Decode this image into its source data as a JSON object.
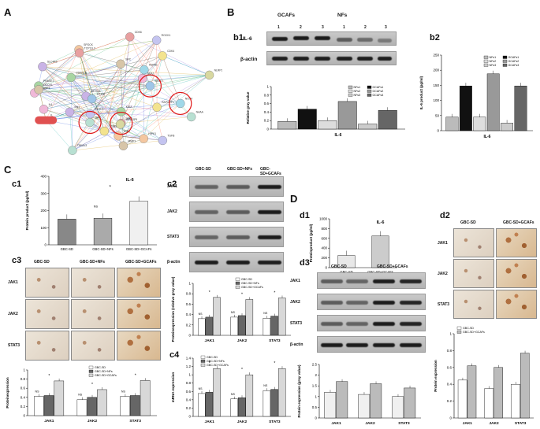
{
  "panels": {
    "A": "A",
    "B": "B",
    "C": "C",
    "D": "D",
    "b1": "b1",
    "b2": "b2",
    "c1": "c1",
    "c2": "c2",
    "c3": "c3",
    "c4": "c4",
    "d1": "d1",
    "d2": "d2",
    "d3": "d3"
  },
  "network": {
    "nodes": [
      "SLC4A3",
      "TOP1",
      "PHASE1",
      "CDK4",
      "IL",
      "CDK6",
      "NAAA",
      "MMP1",
      "TGFB",
      "DNASE1",
      "NOX4",
      "NLRP3",
      "ZBTB45",
      "HIPK1",
      "CDKN1B",
      "STAT2",
      "STAT3",
      "JAK1",
      "JAK2",
      "SRC",
      "PLOD1",
      "SKA2",
      "HSPB1",
      "HERC2P9",
      "KRT",
      "SPOCK",
      "KIAA",
      "RAPGEF1",
      "EP300",
      "TCP11L2",
      "TRIM13",
      "DOCK1",
      "ROCK1",
      "IL6"
    ]
  },
  "b1": {
    "header_left": "GCAFs",
    "header_right": "NFs",
    "lanes": [
      "1",
      "2",
      "3",
      "1",
      "2",
      "3"
    ],
    "rows": [
      "IL-6",
      "β-actin"
    ],
    "chart_data": {
      "type": "bar",
      "ylabel": "Relative gray value",
      "xlabel": "IL-6",
      "ylim": [
        0,
        1
      ],
      "yticks": [
        "0",
        "0.2",
        "0.4",
        "0.6",
        "0.8",
        "1"
      ],
      "series": [
        {
          "name": "NFs1",
          "values": [
            0.18
          ]
        },
        {
          "name": "GCAFs1",
          "values": [
            0.47
          ]
        },
        {
          "name": "NFs2",
          "values": [
            0.2
          ]
        },
        {
          "name": "GCAFs2",
          "values": [
            0.65
          ]
        },
        {
          "name": "NFs3",
          "values": [
            0.12
          ]
        },
        {
          "name": "GCAFs3",
          "values": [
            0.44
          ]
        }
      ],
      "colors": [
        "#bbbbbb",
        "#111111",
        "#dddddd",
        "#999999",
        "#cccccc",
        "#666666"
      ]
    }
  },
  "b2": {
    "chart_data": {
      "type": "bar",
      "ylabel": "IL-6 product (pg/ml)",
      "xlabel": "IL-6",
      "ylim": [
        0,
        250
      ],
      "yticks": [
        "0",
        "50",
        "100",
        "150",
        "200",
        "250"
      ],
      "series": [
        {
          "name": "NFs1",
          "values": [
            45
          ]
        },
        {
          "name": "GCAFs1",
          "values": [
            148
          ]
        },
        {
          "name": "NFs2",
          "values": [
            45
          ]
        },
        {
          "name": "GCAFs2",
          "values": [
            188
          ]
        },
        {
          "name": "NFs3",
          "values": [
            25
          ]
        },
        {
          "name": "GCAFs3",
          "values": [
            148
          ]
        }
      ],
      "colors": [
        "#bbbbbb",
        "#111111",
        "#dddddd",
        "#999999",
        "#cccccc",
        "#666666"
      ]
    }
  },
  "c1": {
    "chart_data": {
      "type": "bar",
      "title": "IL-6",
      "ylabel": "Protein product (pg/ml)",
      "categories": [
        "GBC-SD",
        "GBC-SD+NFs",
        "GBC-SD+GCAFs"
      ],
      "values": [
        150,
        155,
        255
      ],
      "ylim": [
        0,
        400
      ],
      "yticks": [
        "0",
        "100",
        "200",
        "300",
        "400"
      ],
      "annotations": [
        "NS",
        "*"
      ]
    }
  },
  "c2": {
    "headers": [
      "GBC-SD",
      "GBC-SD+NFs",
      "GBC-SD+GCAFs"
    ],
    "rows": [
      "JAK1",
      "JAK2",
      "STAT3",
      "β-actin"
    ],
    "chart_data": {
      "type": "bar",
      "ylabel": "Proteinexpression (relative gray value)",
      "categories": [
        "JAK1",
        "JAK2",
        "STAT3"
      ],
      "series": [
        {
          "name": "GBC-SD",
          "values": [
            0.32,
            0.35,
            0.33
          ]
        },
        {
          "name": "GBC-SD+NFs",
          "values": [
            0.35,
            0.38,
            0.37
          ]
        },
        {
          "name": "GBC-SD+GCAFs",
          "values": [
            0.73,
            0.69,
            0.72
          ]
        }
      ],
      "ylim": [
        0,
        1
      ],
      "yticks": [
        "0",
        "0.2",
        "0.4",
        "0.6",
        "0.8",
        "1"
      ],
      "annotations": [
        "NS",
        "*"
      ]
    }
  },
  "c3": {
    "headers": [
      "GBC-SD",
      "GBC-SD+NFs",
      "GBC-SD+GCAFs"
    ],
    "rows": [
      "JAK1",
      "JAK2",
      "STAT3"
    ],
    "chart_data": {
      "type": "bar",
      "ylabel": "Proteinexpression",
      "categories": [
        "JAK1",
        "JAK2",
        "STAT3"
      ],
      "series": [
        {
          "name": "GBC-SD",
          "values": [
            0.42,
            0.35,
            0.42
          ]
        },
        {
          "name": "GBC-SD+NFs",
          "values": [
            0.44,
            0.4,
            0.44
          ]
        },
        {
          "name": "GBC-SD+GCAFs",
          "values": [
            0.76,
            0.57,
            0.77
          ]
        }
      ],
      "ylim": [
        0,
        1
      ],
      "yticks": [
        "0",
        "0.2",
        "0.4",
        "0.6",
        "0.8",
        "1"
      ],
      "annotations": [
        "NS",
        "*"
      ]
    }
  },
  "c4": {
    "chart_data": {
      "type": "bar",
      "ylabel": "mRNA expression",
      "categories": [
        "JAK1",
        "JAK2",
        "STAT3"
      ],
      "series": [
        {
          "name": "GBC-SD",
          "values": [
            0.55,
            0.42,
            0.62
          ]
        },
        {
          "name": "GBC-SD+NFs",
          "values": [
            0.58,
            0.45,
            0.65
          ]
        },
        {
          "name": "GBC-SD+GCAFs",
          "values": [
            1.15,
            1.0,
            1.15
          ]
        }
      ],
      "ylim": [
        0,
        1.4
      ],
      "yticks": [
        "0",
        "0.2",
        "0.4",
        "0.6",
        "0.8",
        "1",
        "1.2",
        "1.4"
      ],
      "annotations": [
        "NS",
        "*"
      ]
    }
  },
  "d1": {
    "chart_data": {
      "type": "bar",
      "title": "IL-6",
      "ylabel": "Proteinproduct (pg/ml)",
      "categories": [
        "GBC-SD",
        "GBC-SD+GCAFs"
      ],
      "values": [
        250,
        650
      ],
      "ylim": [
        0,
        1000
      ],
      "yticks": [
        "0",
        "200",
        "400",
        "600",
        "800",
        "1000"
      ]
    }
  },
  "d2": {
    "headers": [
      "GBC-SD",
      "GBC-SD+GCAFs"
    ],
    "rows": [
      "JAK1",
      "JAK2",
      "STAT3"
    ],
    "chart_data": {
      "type": "bar",
      "ylabel": "Protein expression",
      "categories": [
        "JAK1",
        "JAK2",
        "STAT3"
      ],
      "series": [
        {
          "name": "GBC-SD",
          "values": [
            0.45,
            0.35,
            0.4
          ]
        },
        {
          "name": "GBC-SD+GCAFs",
          "values": [
            0.62,
            0.6,
            0.77
          ]
        }
      ],
      "ylim": [
        0,
        1
      ],
      "yticks": [
        "0",
        "0.2",
        "0.4",
        "0.6",
        "0.8",
        "1"
      ]
    }
  },
  "d3": {
    "headers": [
      "GBC-SD",
      "GBC-SD+GCAFs"
    ],
    "rows": [
      "JAK1",
      "JAK2",
      "STAT3",
      "β-actin"
    ],
    "chart_data": {
      "type": "bar",
      "ylabel": "Protein expression (gray value)",
      "categories": [
        "JAK1",
        "JAK2",
        "STAT3"
      ],
      "series": [
        {
          "name": "GBC-SD",
          "values": [
            1.2,
            1.1,
            1.0
          ]
        },
        {
          "name": "GBC-SD+GCAFs",
          "values": [
            1.7,
            1.6,
            1.4
          ]
        }
      ],
      "ylim": [
        0,
        2.5
      ],
      "yticks": [
        "0",
        "0.5",
        "1",
        "1.5",
        "2",
        "2.5"
      ]
    }
  }
}
